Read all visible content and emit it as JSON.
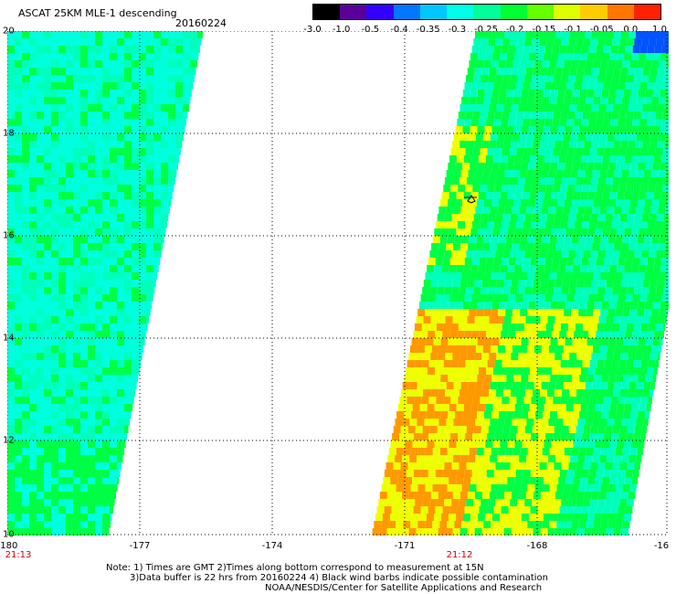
{
  "header": {
    "title": "ASCAT 25KM MLE-1 descending",
    "date": "20160224"
  },
  "colorbar": {
    "labels": [
      "-3.0",
      "-1.0",
      "-0.5",
      "-0.4",
      "-0.35",
      "-0.3",
      "-0.25",
      "-0.2",
      "-0.15",
      "-0.1",
      "-0.05",
      "0.0",
      "1.0"
    ],
    "colors": [
      "#000000",
      "#5a0099",
      "#3300ff",
      "#0077ff",
      "#00c8ff",
      "#00ffe4",
      "#00ff99",
      "#00ff33",
      "#66ff00",
      "#ddff00",
      "#ffcc00",
      "#ff7700",
      "#ff2200"
    ]
  },
  "axes": {
    "lat_labels": [
      "20",
      "18",
      "16",
      "14",
      "12",
      "10"
    ],
    "lon_labels": [
      "-180",
      "-177",
      "-174",
      "-171",
      "-168",
      "-16"
    ]
  },
  "times": {
    "left": "21:13",
    "right": "21:12"
  },
  "notes": {
    "line1": "Note: 1) Times are GMT 2)Times along bottom correspond to measurement at 15N",
    "line2": "3)Data buffer is 22 hrs from 20160224 4) Black wind barbs indicate possible contamination",
    "line3": "NOAA/NESDIS/Center for Satellite Applications and Research"
  },
  "palette": {
    "cyan": "#00ffdd",
    "aqua": "#00ffbb",
    "green": "#00ff44",
    "yellow": "#eeff00",
    "orange": "#ff9900",
    "blue": "#0055ff"
  }
}
